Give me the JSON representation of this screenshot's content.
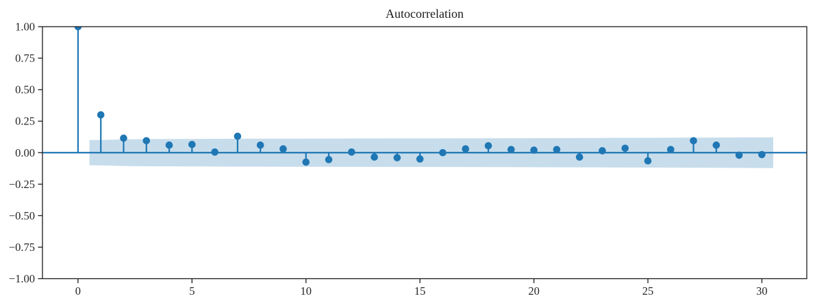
{
  "chart_data": {
    "type": "stem",
    "title": "Autocorrelation",
    "xlabel": "",
    "ylabel": "",
    "x": [
      0,
      1,
      2,
      3,
      4,
      5,
      6,
      7,
      8,
      9,
      10,
      11,
      12,
      13,
      14,
      15,
      16,
      17,
      18,
      19,
      20,
      21,
      22,
      23,
      24,
      25,
      26,
      27,
      28,
      29,
      30
    ],
    "values": [
      1.0,
      0.3,
      0.115,
      0.095,
      0.06,
      0.065,
      0.005,
      0.13,
      0.06,
      0.03,
      -0.075,
      -0.055,
      0.005,
      -0.035,
      -0.04,
      -0.05,
      0.0,
      0.03,
      0.055,
      0.025,
      0.02,
      0.025,
      -0.035,
      0.015,
      0.035,
      -0.065,
      0.025,
      0.095,
      0.06,
      -0.02,
      -0.015
    ],
    "xlim": [
      -1.56,
      31.97
    ],
    "ylim": [
      -1.0,
      1.0
    ],
    "x_ticks": [
      0,
      5,
      10,
      15,
      20,
      25,
      30
    ],
    "x_tick_labels": [
      "0",
      "5",
      "10",
      "15",
      "20",
      "25",
      "30"
    ],
    "y_ticks": [
      1.0,
      0.75,
      0.5,
      0.25,
      0.0,
      -0.25,
      -0.5,
      -0.75,
      -1.0
    ],
    "y_tick_labels": [
      "1.00",
      "0.75",
      "0.50",
      "0.25",
      "0.00",
      "−0.25",
      "−0.50",
      "−0.75",
      "−1.00"
    ],
    "confidence_band": {
      "x": [
        0.5,
        1,
        2,
        3,
        5,
        8,
        11,
        14,
        17,
        20,
        23,
        26,
        29,
        30.5
      ],
      "upper": [
        0.1,
        0.101,
        0.106,
        0.108,
        0.109,
        0.111,
        0.112,
        0.113,
        0.114,
        0.115,
        0.117,
        0.119,
        0.121,
        0.122
      ],
      "lower": [
        -0.1,
        -0.101,
        -0.106,
        -0.108,
        -0.109,
        -0.111,
        -0.112,
        -0.113,
        -0.114,
        -0.115,
        -0.117,
        -0.119,
        -0.121,
        -0.122
      ]
    },
    "baseline_y": 0.0,
    "grid": false,
    "legend": null,
    "colors": {
      "series": "#1f77b4",
      "band": "#1f77b4",
      "band_opacity": 0.25,
      "axis": "#1a1a1a",
      "text": "#262626",
      "background": "#ffffff"
    },
    "marker_radius": 5.3,
    "stem_width": 2.2
  }
}
